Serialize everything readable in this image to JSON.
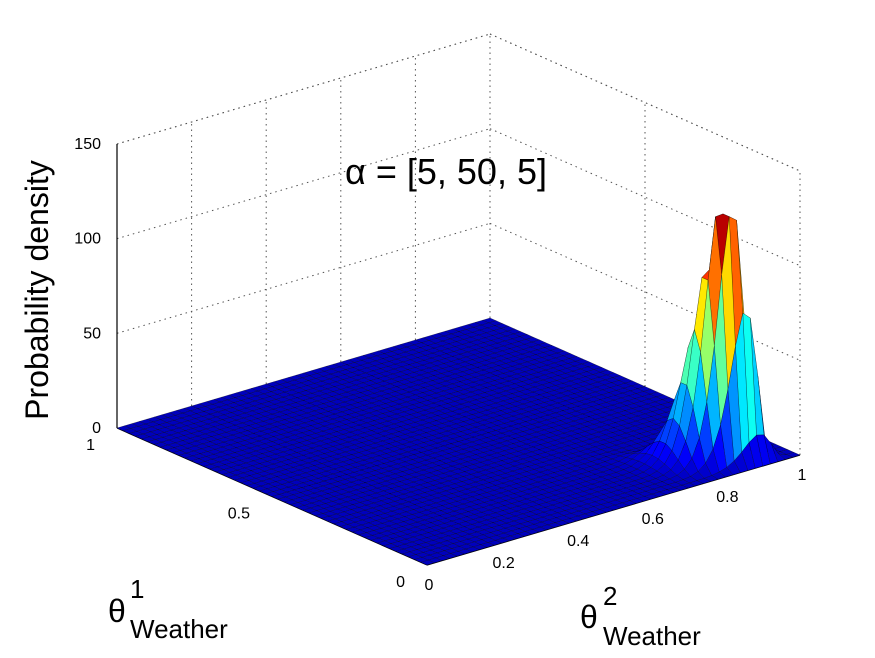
{
  "chart_data": {
    "type": "surface",
    "title": "α = [5, 50, 5]",
    "xlabel": {
      "base": "θ",
      "sup": "1",
      "sub": "Weather"
    },
    "ylabel": {
      "base": "θ",
      "sup": "2",
      "sub": "Weather"
    },
    "zlabel": "Probability density",
    "xlim": [
      0,
      1
    ],
    "ylim": [
      0,
      1
    ],
    "zlim": [
      0,
      150
    ],
    "x_ticks": [
      "0",
      "0.5",
      "1"
    ],
    "y_ticks": [
      "0",
      "0.2",
      "0.4",
      "0.6",
      "0.8",
      "1"
    ],
    "z_ticks": [
      "0",
      "50",
      "100",
      "150"
    ],
    "distribution": "dirichlet",
    "alpha": [
      5,
      50,
      5
    ],
    "grid": true,
    "colormap": "jet",
    "peak_density": 113,
    "peak_at": {
      "theta1": 0.08,
      "theta2": 0.84
    }
  }
}
